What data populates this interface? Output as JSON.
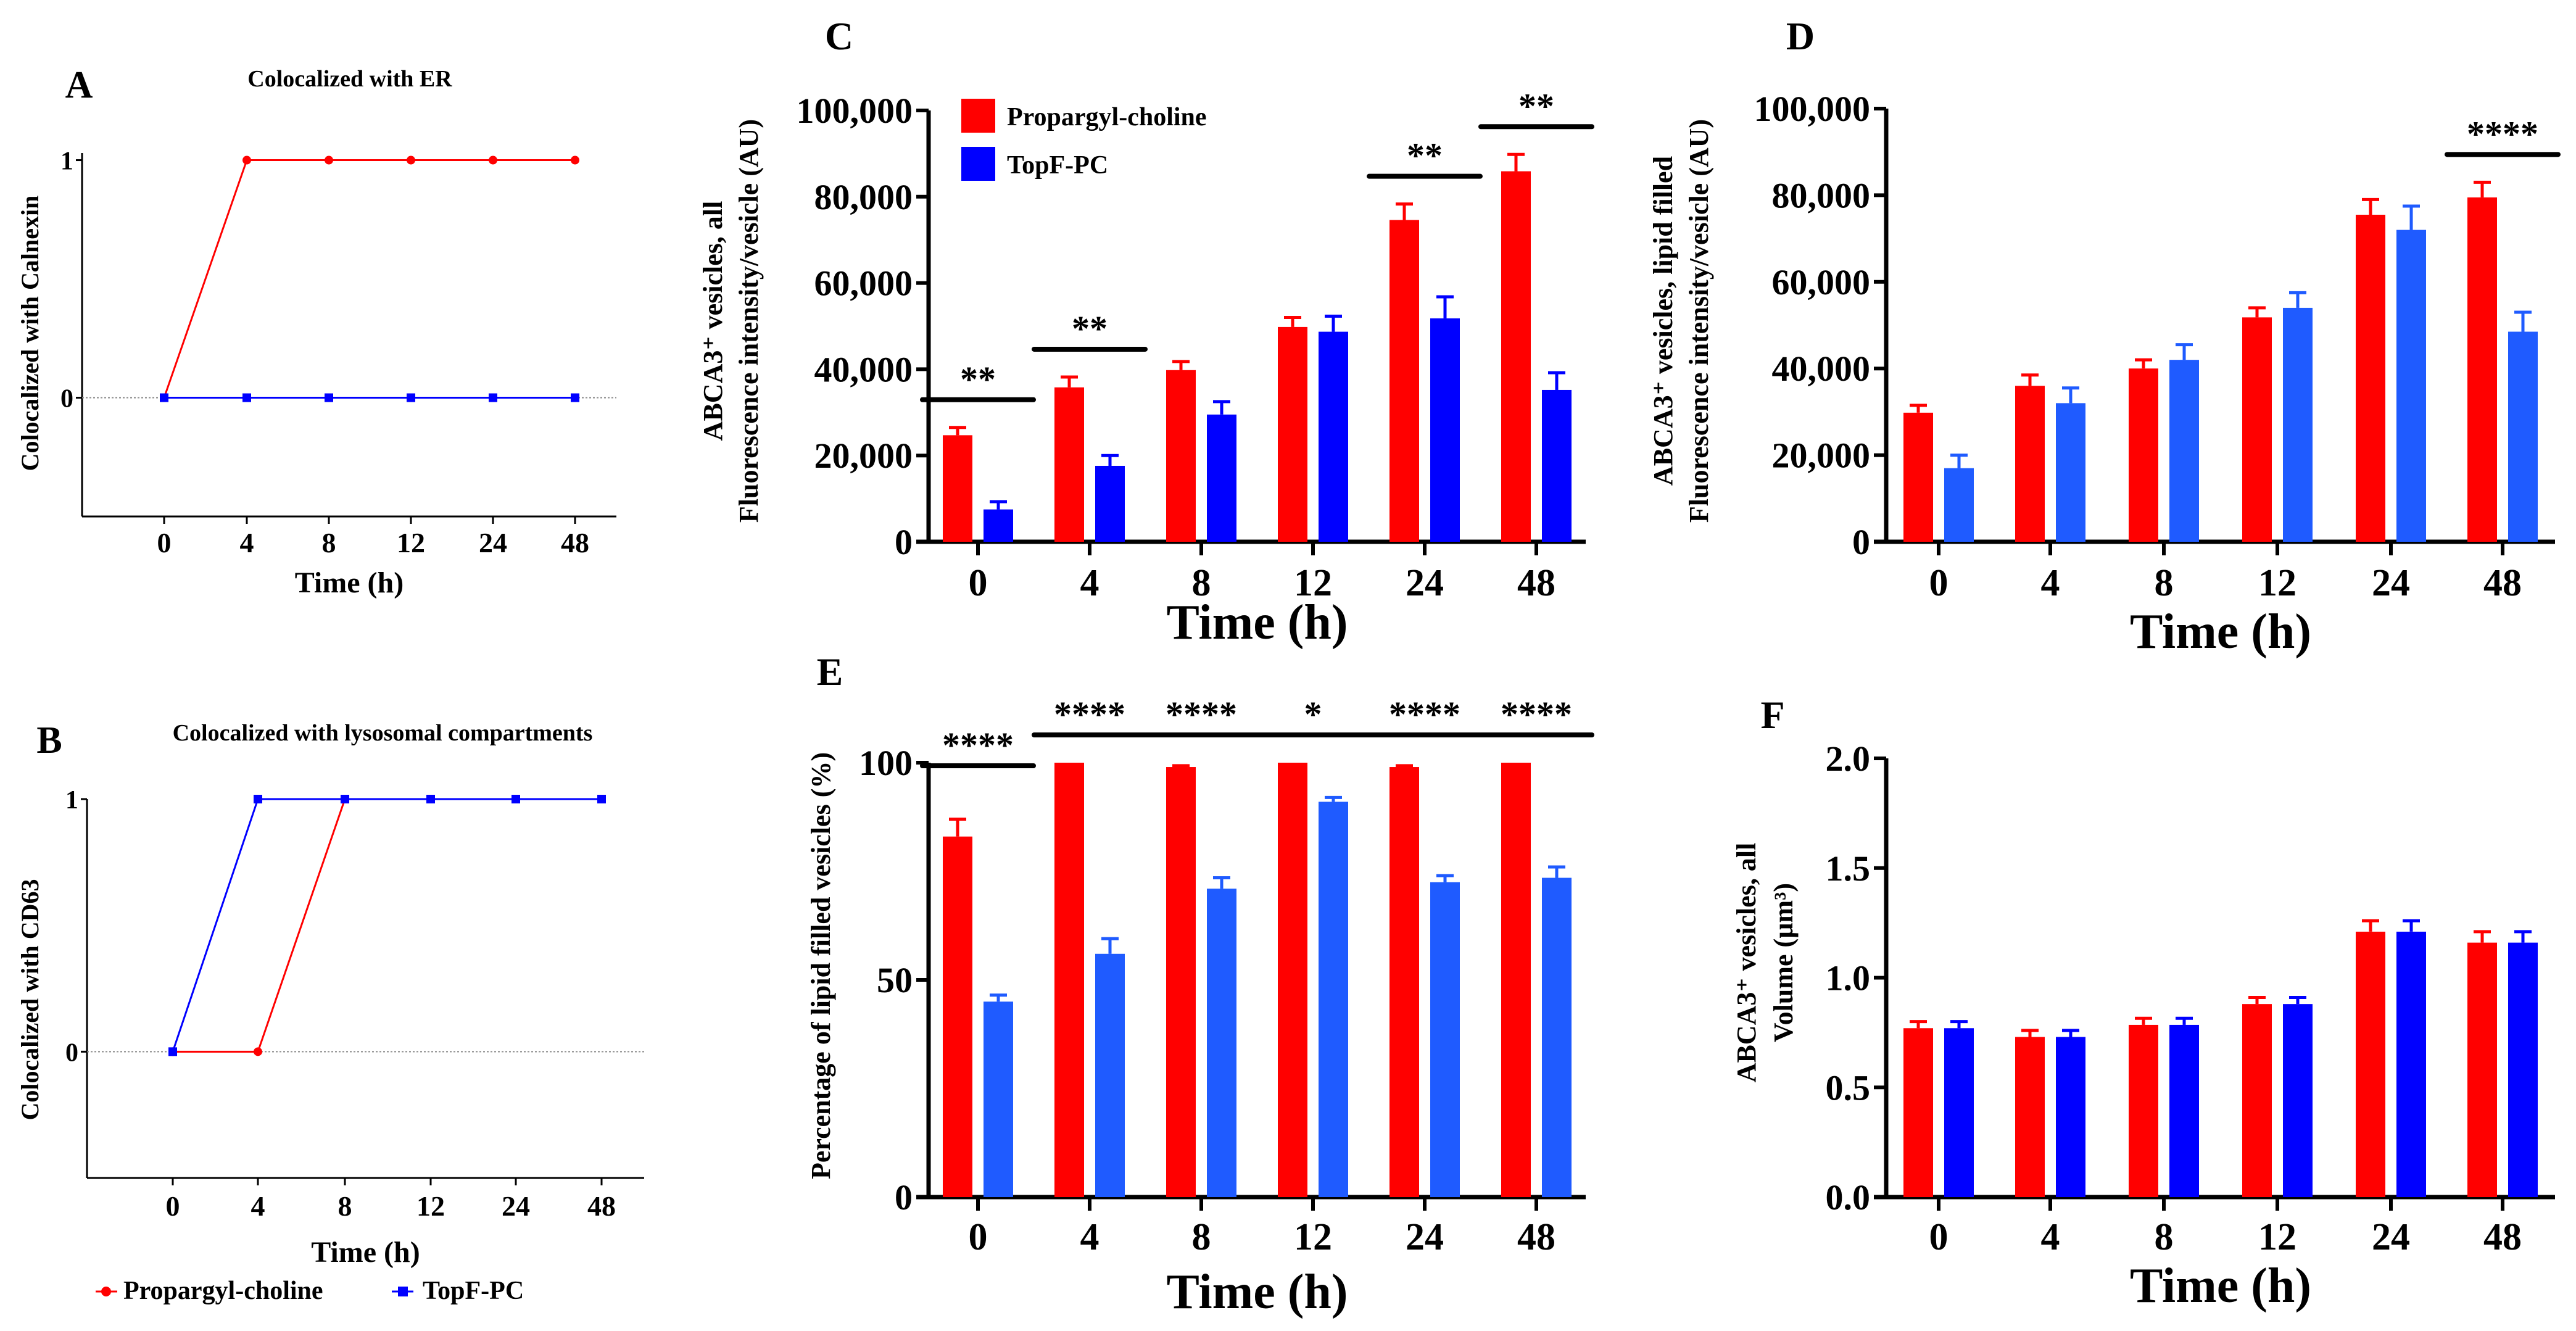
{
  "colors": {
    "propargyl": "#ff0000",
    "topf": "#0000ff",
    "topf_light": "#1f5bff",
    "axis": "#000000",
    "zero_line": "#888888"
  },
  "legend": {
    "series": [
      "Propargyl-choline",
      "TopF-PC"
    ]
  },
  "chart_data": [
    {
      "panel": "A",
      "type": "line",
      "title": "Colocalized with ER",
      "xlabel": "Time (h)",
      "ylabel": [
        "Colocalized with Calnexin"
      ],
      "categories": [
        "0",
        "4",
        "8",
        "12",
        "24",
        "48"
      ],
      "yticks": [
        0,
        1
      ],
      "ytick_labels": [
        "0",
        "1"
      ],
      "ylim": [
        -0.5,
        1.03
      ],
      "series": [
        {
          "name": "Propargyl-choline",
          "values": [
            0,
            1,
            1,
            1,
            1,
            1
          ]
        },
        {
          "name": "TopF-PC",
          "values": [
            0,
            0,
            0,
            0,
            0,
            0
          ]
        }
      ]
    },
    {
      "panel": "B",
      "type": "line",
      "title": "Colocalized with lysosomal compartments",
      "xlabel": "Time (h)",
      "ylabel": [
        "Colocalized with CD63"
      ],
      "categories": [
        "0",
        "4",
        "8",
        "12",
        "24",
        "48"
      ],
      "yticks": [
        0,
        1
      ],
      "ytick_labels": [
        "0",
        "1"
      ],
      "ylim": [
        -0.5,
        1.0
      ],
      "series": [
        {
          "name": "Propargyl-choline",
          "values": [
            0,
            0,
            1,
            1,
            1,
            1
          ]
        },
        {
          "name": "TopF-PC",
          "values": [
            0,
            1,
            1,
            1,
            1,
            1
          ]
        }
      ],
      "legend": [
        "Propargyl-choline",
        "TopF-PC"
      ]
    },
    {
      "panel": "C",
      "type": "bar",
      "title": "",
      "xlabel": "Time (h)",
      "ylabel": [
        "ABCA3⁺ vesicles, all",
        "Fluorescence intensity/vesicle (AU)"
      ],
      "categories": [
        "0",
        "4",
        "8",
        "12",
        "24",
        "48"
      ],
      "yticks": [
        0,
        20000,
        40000,
        60000,
        80000,
        100000
      ],
      "ytick_labels": [
        "0",
        "20,000",
        "40,000",
        "60,000",
        "80,000",
        "100,000"
      ],
      "ylim": [
        0,
        100000
      ],
      "series": [
        {
          "name": "Propargyl-choline",
          "values": [
            24700,
            35800,
            39800,
            49800,
            74600,
            85900
          ],
          "err": [
            1800,
            2400,
            2000,
            2200,
            3700,
            3900
          ]
        },
        {
          "name": "TopF-PC",
          "values": [
            7500,
            17600,
            29500,
            48700,
            51800,
            35200
          ],
          "err": [
            1800,
            2400,
            3000,
            3600,
            5000,
            4000
          ]
        }
      ],
      "significance": [
        "**",
        "**",
        "",
        "",
        "**",
        "**"
      ],
      "legend": [
        "Propargyl-choline",
        "TopF-PC"
      ]
    },
    {
      "panel": "D",
      "type": "bar",
      "title": "",
      "xlabel": "Time (h)",
      "ylabel": [
        "ABCA3⁺ vesicles, lipid filled",
        "Fluorescence intensity/vesicle (AU)"
      ],
      "categories": [
        "0",
        "4",
        "8",
        "12",
        "24",
        "48"
      ],
      "yticks": [
        0,
        20000,
        40000,
        60000,
        80000,
        100000
      ],
      "ytick_labels": [
        "0",
        "20,000",
        "40,000",
        "60,000",
        "80,000",
        "100,000"
      ],
      "ylim": [
        0,
        100000
      ],
      "series": [
        {
          "name": "Propargyl-choline",
          "values": [
            29800,
            36000,
            40000,
            51800,
            75500,
            79500
          ],
          "err": [
            1700,
            2500,
            2000,
            2200,
            3500,
            3500
          ]
        },
        {
          "name": "TopF-PC",
          "values": [
            17000,
            32000,
            42000,
            54000,
            72000,
            48500
          ],
          "err": [
            3000,
            3500,
            3500,
            3500,
            5500,
            4500
          ]
        }
      ],
      "significance": [
        "",
        "",
        "",
        "",
        "",
        "****"
      ]
    },
    {
      "panel": "E",
      "type": "bar",
      "title": "",
      "xlabel": "Time (h)",
      "ylabel": [
        "Percentage of lipid filled vesicles (%)"
      ],
      "categories": [
        "0",
        "4",
        "8",
        "12",
        "24",
        "48"
      ],
      "yticks": [
        0,
        50,
        100
      ],
      "ytick_labels": [
        "0",
        "50",
        "100"
      ],
      "ylim": [
        0,
        100
      ],
      "series": [
        {
          "name": "Propargyl-choline",
          "values": [
            83,
            100,
            99,
            100,
            99,
            100
          ],
          "err": [
            4,
            0,
            0.3,
            0,
            0.3,
            0
          ]
        },
        {
          "name": "TopF-PC",
          "values": [
            45,
            56,
            71,
            91,
            72.5,
            73.5
          ],
          "err": [
            1.5,
            3.5,
            2.5,
            1,
            1.5,
            2.5
          ]
        }
      ],
      "significance": [
        "****",
        "****",
        "****",
        "*",
        "****",
        "****"
      ]
    },
    {
      "panel": "F",
      "type": "bar",
      "title": "",
      "xlabel": "Time (h)",
      "ylabel": [
        "ABCA3⁺ vesicles, all",
        "Volume (µm³)"
      ],
      "categories": [
        "0",
        "4",
        "8",
        "12",
        "24",
        "48"
      ],
      "yticks": [
        0,
        0.5,
        1.0,
        1.5,
        2.0
      ],
      "ytick_labels": [
        "0.0",
        "0.5",
        "1.0",
        "1.5",
        "2.0"
      ],
      "ylim": [
        0,
        2.0
      ],
      "series": [
        {
          "name": "Propargyl-choline",
          "values": [
            0.77,
            0.73,
            0.785,
            0.88,
            1.21,
            1.16
          ],
          "err": [
            0.03,
            0.03,
            0.03,
            0.03,
            0.05,
            0.05
          ]
        },
        {
          "name": "TopF-PC",
          "values": [
            0.77,
            0.73,
            0.785,
            0.88,
            1.21,
            1.16
          ],
          "err": [
            0.03,
            0.03,
            0.03,
            0.03,
            0.05,
            0.05
          ]
        }
      ],
      "significance": [
        "",
        "",
        "",
        "",
        "",
        ""
      ]
    }
  ]
}
